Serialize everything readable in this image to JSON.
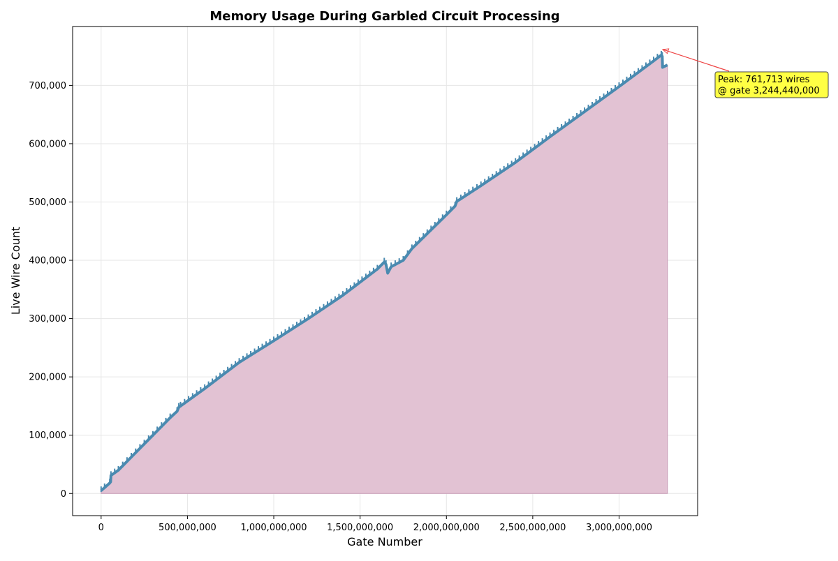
{
  "chart_data": {
    "type": "area",
    "title": "Memory Usage During Garbled Circuit Processing",
    "xlabel": "Gate Number",
    "ylabel": "Live Wire Count",
    "xlim": [
      -165000000,
      3455000000
    ],
    "ylim": [
      -38000,
      801000
    ],
    "xticks": [
      0,
      500000000,
      1000000000,
      1500000000,
      2000000000,
      2500000000,
      3000000000
    ],
    "xtick_labels": [
      "0",
      "500,000,000",
      "1,000,000,000",
      "1,500,000,000",
      "2,000,000,000",
      "2,500,000,000",
      "3,000,000,000"
    ],
    "yticks": [
      0,
      100000,
      200000,
      300000,
      400000,
      500000,
      600000,
      700000
    ],
    "ytick_labels": [
      "0",
      "100,000",
      "200,000",
      "300,000",
      "400,000",
      "500,000",
      "600,000",
      "700,000"
    ],
    "grid": true,
    "series": [
      {
        "line_color": "#4a8ab0",
        "fill_color": "#e2c2d3",
        "fill_edge_color": "#c79bb6",
        "points": [
          [
            0,
            5000
          ],
          [
            20000000,
            10000
          ],
          [
            50000000,
            18000
          ],
          [
            55000000,
            20000
          ],
          [
            57000000,
            31000
          ],
          [
            100000000,
            40000
          ],
          [
            200000000,
            70000
          ],
          [
            300000000,
            100000
          ],
          [
            400000000,
            130000
          ],
          [
            440000000,
            141000
          ],
          [
            450000000,
            148000
          ],
          [
            460000000,
            150000
          ],
          [
            600000000,
            180000
          ],
          [
            800000000,
            225000
          ],
          [
            1000000000,
            262000
          ],
          [
            1200000000,
            300000
          ],
          [
            1400000000,
            340000
          ],
          [
            1600000000,
            385000
          ],
          [
            1640000000,
            397000
          ],
          [
            1650000000,
            393000
          ],
          [
            1660000000,
            378000
          ],
          [
            1680000000,
            389000
          ],
          [
            1750000000,
            400000
          ],
          [
            1800000000,
            420000
          ],
          [
            2000000000,
            478000
          ],
          [
            2050000000,
            493000
          ],
          [
            2060000000,
            501000
          ],
          [
            2200000000,
            528000
          ],
          [
            2400000000,
            568000
          ],
          [
            2600000000,
            612000
          ],
          [
            2800000000,
            655000
          ],
          [
            3000000000,
            698000
          ],
          [
            3200000000,
            742000
          ],
          [
            3244440000,
            752000
          ],
          [
            3250000000,
            750000
          ],
          [
            3252000000,
            731000
          ],
          [
            3280000000,
            735000
          ]
        ],
        "fill_end_x": 3280000000
      }
    ],
    "annotation": {
      "text_line1": "Peak: 761,713 wires",
      "text_line2": "@ gate 3,244,440,000",
      "peak_x": 3244440000,
      "peak_y": 761713,
      "box_color": "#ffff44",
      "arrow_color": "#ee4444"
    }
  }
}
